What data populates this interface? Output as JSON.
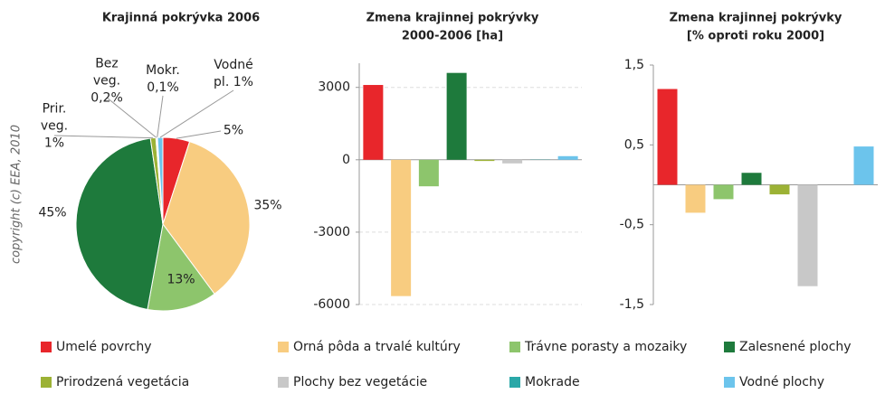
{
  "chart_data": [
    {
      "type": "pie",
      "title": "Krajinná pokrývka 2006",
      "categories": [
        "Umelé povrchy",
        "Orná pôda a trvalé kultúry",
        "Trávne porasty a mozaiky",
        "Zalesnené plochy",
        "Prirodzená vegetácia",
        "Plochy bez vegetácie",
        "Mokrade",
        "Vodné plochy"
      ],
      "colors": [
        "#e8262b",
        "#f8cc80",
        "#8dc56c",
        "#1e7a3c",
        "#9cb235",
        "#c8c8c8",
        "#2aa8a8",
        "#6cc4ec"
      ],
      "values": [
        5,
        35,
        13,
        45,
        1,
        0.2,
        0.1,
        1
      ],
      "value_labels": [
        "5%",
        "35%",
        "13%",
        "45%",
        "Prir. veg. 1%",
        "Bez veg. 0,2%",
        "Mokr. 0,1%",
        "Vodné pl. 1%"
      ]
    },
    {
      "type": "bar",
      "title": "Zmena krajinnej pokrývky",
      "subtitle": "2000-2006 [ha]",
      "categories": [
        "Umelé povrchy",
        "Orná pôda a trvalé kultúry",
        "Trávne porasty a mozaiky",
        "Zalesnené plochy",
        "Prirodzená vegetácia",
        "Plochy bez vegetácie",
        "Mokrade",
        "Vodné plochy"
      ],
      "colors": [
        "#e8262b",
        "#f8cc80",
        "#8dc56c",
        "#1e7a3c",
        "#9cb235",
        "#c8c8c8",
        "#2aa8a8",
        "#6cc4ec"
      ],
      "values": [
        3100,
        -5650,
        -1100,
        3600,
        -50,
        -150,
        10,
        150
      ],
      "ylim": [
        -6000,
        4000
      ],
      "yticks": [
        -6000,
        -3000,
        0,
        3000
      ],
      "grid": true
    },
    {
      "type": "bar",
      "title": "Zmena krajinnej pokrývky",
      "subtitle": "[% oproti roku 2000]",
      "categories": [
        "Umelé povrchy",
        "Orná pôda a trvalé kultúry",
        "Trávne porasty a mozaiky",
        "Zalesnené plochy",
        "Prirodzená vegetácia",
        "Plochy bez vegetácie",
        "Mokrade",
        "Vodné plochy"
      ],
      "colors": [
        "#e8262b",
        "#f8cc80",
        "#8dc56c",
        "#1e7a3c",
        "#9cb235",
        "#c8c8c8",
        "#2aa8a8",
        "#6cc4ec"
      ],
      "values": [
        1.2,
        -0.35,
        -0.18,
        0.15,
        -0.12,
        -1.27,
        0,
        0.48
      ],
      "ylim": [
        -1.5,
        1.5
      ],
      "yticks": [
        {
          "value": -1.5,
          "label": "-1,5"
        },
        {
          "value": -0.5,
          "label": "-0,5"
        },
        {
          "value": 0.5,
          "label": "0,5"
        },
        {
          "value": 1.5,
          "label": "1,5"
        }
      ],
      "grid": false
    }
  ],
  "copyright": "copyright (c) EEA, 2010"
}
